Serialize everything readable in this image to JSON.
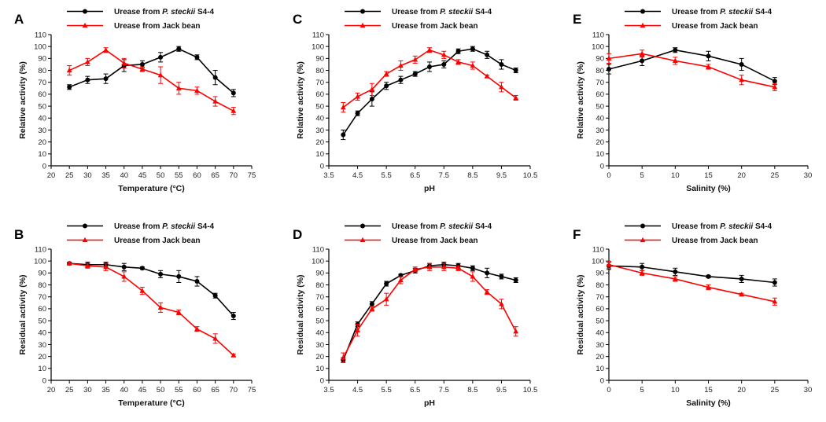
{
  "chart_data": [
    {
      "type": "line",
      "panel_label": "A",
      "xlabel": "Temperature (°C)",
      "ylabel": "Relative activity (%)",
      "xlim": [
        20,
        75
      ],
      "xticks": [
        20,
        25,
        30,
        35,
        40,
        45,
        50,
        55,
        60,
        65,
        70,
        75
      ],
      "ylim": [
        0,
        110
      ],
      "yticks": [
        0,
        10,
        20,
        30,
        40,
        50,
        60,
        70,
        80,
        90,
        100,
        110
      ],
      "legend": [
        {
          "pre": "Urease from ",
          "ital": "P. steckii",
          "post": " S4-4"
        },
        {
          "pre": "Urease from Jack bean",
          "ital": "",
          "post": ""
        }
      ],
      "series": [
        {
          "color": "#000000",
          "marker": "circle",
          "x": [
            25,
            30,
            35,
            40,
            45,
            50,
            55,
            60,
            65,
            70
          ],
          "y": [
            66,
            72,
            73,
            84,
            85,
            91,
            98,
            91,
            74,
            61
          ],
          "err": [
            2,
            3,
            4,
            5,
            3,
            4,
            2,
            2,
            6,
            3
          ]
        },
        {
          "color": "#ff0000",
          "marker": "triangle",
          "x": [
            25,
            30,
            35,
            40,
            45,
            50,
            55,
            60,
            65,
            70
          ],
          "y": [
            80,
            87,
            97,
            86,
            81,
            76,
            65,
            63,
            54,
            46
          ],
          "err": [
            4,
            3,
            2,
            4,
            2,
            7,
            5,
            3,
            4,
            3
          ]
        }
      ]
    },
    {
      "type": "line",
      "panel_label": "B",
      "xlabel": "Temperature (°C)",
      "ylabel": "Residual activity (%)",
      "xlim": [
        20,
        75
      ],
      "xticks": [
        20,
        25,
        30,
        35,
        40,
        45,
        50,
        55,
        60,
        65,
        70,
        75
      ],
      "ylim": [
        0,
        110
      ],
      "yticks": [
        0,
        10,
        20,
        30,
        40,
        50,
        60,
        70,
        80,
        90,
        100,
        110
      ],
      "legend": [
        {
          "pre": "Urease from ",
          "ital": "P. steckii",
          "post": " S4-4"
        },
        {
          "pre": "Urease from Jack bean",
          "ital": "",
          "post": ""
        }
      ],
      "series": [
        {
          "color": "#000000",
          "marker": "circle",
          "x": [
            25,
            30,
            35,
            40,
            45,
            50,
            55,
            60,
            65,
            70
          ],
          "y": [
            98,
            97,
            97,
            95,
            94,
            89,
            87,
            83,
            71,
            54
          ],
          "err": [
            1,
            2,
            2,
            3,
            1,
            3,
            5,
            4,
            2,
            3
          ]
        },
        {
          "color": "#ff0000",
          "marker": "triangle",
          "x": [
            25,
            30,
            35,
            40,
            45,
            50,
            55,
            60,
            65,
            70
          ],
          "y": [
            98,
            96,
            95,
            87,
            75,
            61,
            57,
            43,
            35,
            21
          ],
          "err": [
            1,
            2,
            3,
            4,
            3,
            4,
            2,
            2,
            4,
            1
          ]
        }
      ]
    },
    {
      "type": "line",
      "panel_label": "C",
      "xlabel": "pH",
      "ylabel": "Relative activity (%)",
      "xlim": [
        3.5,
        10.5
      ],
      "xticks": [
        3.5,
        4.5,
        5.5,
        6.5,
        7.5,
        8.5,
        9.5,
        10.5
      ],
      "ylim": [
        0,
        110
      ],
      "yticks": [
        0,
        10,
        20,
        30,
        40,
        50,
        60,
        70,
        80,
        90,
        100,
        110
      ],
      "legend": [
        {
          "pre": "Urease from ",
          "ital": "P. steckii",
          "post": " S4-4"
        },
        {
          "pre": "Urease from Jack bean",
          "ital": "",
          "post": ""
        }
      ],
      "series": [
        {
          "color": "#000000",
          "marker": "circle",
          "x": [
            4,
            4.5,
            5,
            5.5,
            6,
            6.5,
            7,
            7.5,
            8,
            8.5,
            9,
            9.5,
            10
          ],
          "y": [
            26,
            44,
            56,
            67,
            72,
            77,
            83,
            85,
            96,
            98,
            93,
            85,
            80
          ],
          "err": [
            4,
            2,
            6,
            3,
            3,
            2,
            4,
            3,
            2,
            2,
            3,
            4,
            2
          ]
        },
        {
          "color": "#ff0000",
          "marker": "triangle",
          "x": [
            4,
            4.5,
            5,
            5.5,
            6,
            6.5,
            7,
            7.5,
            8,
            8.5,
            9,
            9.5,
            10
          ],
          "y": [
            49,
            58,
            64,
            77,
            84,
            89,
            97,
            93,
            87,
            84,
            75,
            66,
            57
          ],
          "err": [
            4,
            3,
            5,
            2,
            4,
            3,
            2,
            3,
            2,
            3,
            1,
            4,
            2
          ]
        }
      ]
    },
    {
      "type": "line",
      "panel_label": "D",
      "xlabel": "pH",
      "ylabel": "Residual activity (%)",
      "xlim": [
        3.5,
        10.5
      ],
      "xticks": [
        3.5,
        4.5,
        5.5,
        6.5,
        7.5,
        8.5,
        9.5,
        10.5
      ],
      "ylim": [
        0,
        110
      ],
      "yticks": [
        0,
        10,
        20,
        30,
        40,
        50,
        60,
        70,
        80,
        90,
        100,
        110
      ],
      "legend": [
        {
          "pre": "Urease from ",
          "ital": "P. steckii",
          "post": " S4-4"
        },
        {
          "pre": "Urease from Jack bean",
          "ital": "",
          "post": ""
        }
      ],
      "series": [
        {
          "color": "#000000",
          "marker": "circle",
          "x": [
            4,
            4.5,
            5,
            5.5,
            6,
            6.5,
            7,
            7.5,
            8,
            8.5,
            9,
            9.5,
            10
          ],
          "y": [
            17,
            47,
            64,
            81,
            88,
            92,
            96,
            97,
            96,
            94,
            90,
            87,
            84
          ],
          "err": [
            2,
            2,
            2,
            2,
            1,
            2,
            2,
            2,
            2,
            2,
            4,
            2,
            2
          ]
        },
        {
          "color": "#ff0000",
          "marker": "triangle",
          "x": [
            4,
            4.5,
            5,
            5.5,
            6,
            6.5,
            7,
            7.5,
            8,
            8.5,
            9,
            9.5,
            10
          ],
          "y": [
            19,
            42,
            60,
            68,
            84,
            93,
            95,
            95,
            94,
            87,
            74,
            64,
            41
          ],
          "err": [
            4,
            5,
            2,
            5,
            3,
            2,
            3,
            3,
            2,
            4,
            2,
            4,
            4
          ]
        }
      ]
    },
    {
      "type": "line",
      "panel_label": "E",
      "xlabel": "Salinity (%)",
      "ylabel": "Relative activity (%)",
      "xlim": [
        0,
        30
      ],
      "xticks": [
        0,
        5,
        10,
        15,
        20,
        25,
        30
      ],
      "ylim": [
        0,
        110
      ],
      "yticks": [
        0,
        10,
        20,
        30,
        40,
        50,
        60,
        70,
        80,
        90,
        100,
        110
      ],
      "legend": [
        {
          "pre": "Urease from ",
          "ital": "P. steckii",
          "post": " S4-4"
        },
        {
          "pre": "Urease from Jack bean",
          "ital": "",
          "post": ""
        }
      ],
      "series": [
        {
          "color": "#000000",
          "marker": "circle",
          "x": [
            0,
            5,
            10,
            15,
            20,
            25
          ],
          "y": [
            81,
            88,
            97,
            92,
            85,
            71
          ],
          "err": [
            4,
            4,
            2,
            4,
            5,
            3
          ]
        },
        {
          "color": "#ff0000",
          "marker": "triangle",
          "x": [
            0,
            5,
            10,
            15,
            20,
            25
          ],
          "y": [
            90,
            94,
            88,
            83,
            72,
            66
          ],
          "err": [
            4,
            3,
            3,
            2,
            4,
            3
          ]
        }
      ]
    },
    {
      "type": "line",
      "panel_label": "F",
      "xlabel": "Salinity (%)",
      "ylabel": "Residual activity (%)",
      "xlim": [
        0,
        30
      ],
      "xticks": [
        0,
        5,
        10,
        15,
        20,
        25,
        30
      ],
      "ylim": [
        0,
        110
      ],
      "yticks": [
        0,
        10,
        20,
        30,
        40,
        50,
        60,
        70,
        80,
        90,
        100,
        110
      ],
      "legend": [
        {
          "pre": "Urease from ",
          "ital": "P. steckii",
          "post": " S4-4"
        },
        {
          "pre": "Urease from Jack bean",
          "ital": "",
          "post": ""
        }
      ],
      "series": [
        {
          "color": "#000000",
          "marker": "circle",
          "x": [
            0,
            5,
            10,
            15,
            20,
            25
          ],
          "y": [
            96,
            95,
            91,
            87,
            85,
            82
          ],
          "err": [
            3,
            3,
            3,
            1,
            3,
            3
          ]
        },
        {
          "color": "#ff0000",
          "marker": "triangle",
          "x": [
            0,
            5,
            10,
            15,
            20,
            25
          ],
          "y": [
            97,
            90,
            85,
            78,
            72,
            66
          ],
          "err": [
            3,
            2,
            2,
            2,
            1,
            3
          ]
        }
      ]
    }
  ]
}
